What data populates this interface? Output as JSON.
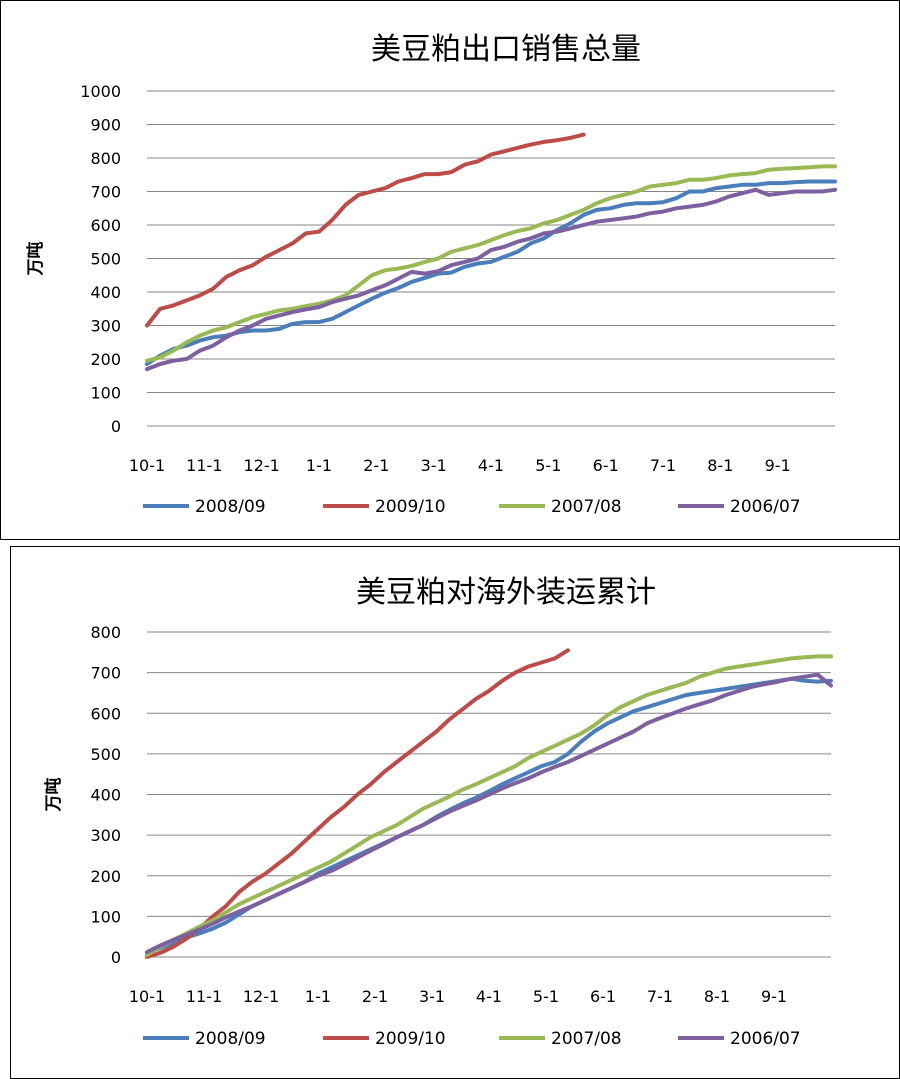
{
  "chart_data": [
    {
      "type": "line",
      "title": "美豆粕出口销售总量",
      "ylabel": "万吨",
      "xlabel": "",
      "ylim": [
        0,
        1000
      ],
      "yticks": [
        0,
        100,
        200,
        300,
        400,
        500,
        600,
        700,
        800,
        900,
        1000
      ],
      "x_tick_labels": [
        "10-1",
        "11-1",
        "12-1",
        "1-1",
        "2-1",
        "3-1",
        "4-1",
        "5-1",
        "6-1",
        "7-1",
        "8-1",
        "9-1"
      ],
      "points_per_series": 53,
      "legend_position": "bottom",
      "series": [
        {
          "name": "2008/09",
          "color": "#4a7ebb",
          "values": [
            185,
            210,
            230,
            240,
            255,
            265,
            270,
            280,
            285,
            285,
            290,
            305,
            310,
            310,
            320,
            340,
            360,
            380,
            398,
            412,
            430,
            442,
            455,
            458,
            475,
            485,
            490,
            505,
            520,
            545,
            560,
            585,
            605,
            630,
            645,
            650,
            660,
            665,
            665,
            668,
            680,
            700,
            700,
            710,
            715,
            720,
            720,
            725,
            725,
            728,
            730,
            730,
            730
          ]
        },
        {
          "name": "2009/10",
          "color": "#be4b48",
          "values": [
            300,
            350,
            360,
            375,
            390,
            410,
            445,
            465,
            480,
            505,
            525,
            545,
            575,
            580,
            615,
            660,
            690,
            700,
            710,
            730,
            740,
            752,
            752,
            758,
            780,
            790,
            810,
            820,
            830,
            840,
            848,
            853,
            860,
            870
          ]
        },
        {
          "name": "2007/08",
          "color": "#98b954",
          "values": [
            195,
            205,
            225,
            250,
            270,
            285,
            295,
            310,
            325,
            335,
            345,
            350,
            358,
            365,
            375,
            390,
            420,
            450,
            465,
            470,
            478,
            490,
            500,
            520,
            530,
            540,
            555,
            570,
            582,
            590,
            605,
            615,
            630,
            645,
            665,
            680,
            690,
            700,
            715,
            720,
            725,
            735,
            735,
            740,
            748,
            752,
            755,
            765,
            768,
            770,
            772,
            775,
            775
          ]
        },
        {
          "name": "2006/07",
          "color": "#7d60a0",
          "values": [
            170,
            185,
            195,
            200,
            225,
            240,
            265,
            285,
            300,
            320,
            330,
            340,
            348,
            355,
            370,
            380,
            390,
            405,
            420,
            440,
            460,
            455,
            462,
            480,
            490,
            500,
            525,
            535,
            550,
            560,
            575,
            580,
            590,
            600,
            610,
            615,
            620,
            625,
            635,
            640,
            650,
            655,
            660,
            670,
            685,
            695,
            705,
            690,
            695,
            700,
            700,
            700,
            705
          ]
        }
      ]
    },
    {
      "type": "line",
      "title": "美豆粕对海外装运累计",
      "ylabel": "万吨",
      "xlabel": "",
      "ylim": [
        0,
        800
      ],
      "yticks": [
        0,
        100,
        200,
        300,
        400,
        500,
        600,
        700,
        800
      ],
      "x_tick_labels": [
        "10-1",
        "11-1",
        "12-1",
        "1-1",
        "2-1",
        "3-1",
        "4-1",
        "5-1",
        "6-1",
        "7-1",
        "8-1",
        "9-1"
      ],
      "points_per_series": 53,
      "legend_position": "bottom",
      "series": [
        {
          "name": "2008/09",
          "color": "#4a7ebb",
          "values": [
            10,
            22,
            35,
            48,
            58,
            70,
            85,
            105,
            125,
            140,
            155,
            170,
            185,
            205,
            220,
            235,
            250,
            265,
            280,
            295,
            310,
            325,
            345,
            362,
            378,
            392,
            408,
            425,
            440,
            455,
            470,
            480,
            500,
            530,
            555,
            575,
            590,
            605,
            615,
            625,
            635,
            645,
            650,
            655,
            660,
            665,
            670,
            675,
            680,
            685,
            680,
            678,
            680
          ]
        },
        {
          "name": "2009/10",
          "color": "#be4b48",
          "values": [
            0,
            10,
            25,
            45,
            70,
            100,
            125,
            160,
            185,
            205,
            230,
            255,
            285,
            315,
            345,
            370,
            400,
            425,
            455,
            480,
            505,
            530,
            555,
            585,
            610,
            635,
            655,
            680,
            700,
            715,
            725,
            735,
            755
          ]
        },
        {
          "name": "2007/08",
          "color": "#98b954",
          "values": [
            5,
            25,
            42,
            58,
            75,
            90,
            110,
            130,
            145,
            160,
            175,
            190,
            205,
            220,
            235,
            255,
            275,
            295,
            310,
            325,
            345,
            365,
            380,
            395,
            412,
            425,
            440,
            455,
            470,
            490,
            505,
            520,
            535,
            550,
            570,
            595,
            615,
            630,
            645,
            655,
            665,
            675,
            690,
            700,
            710,
            715,
            720,
            725,
            730,
            735,
            738,
            740,
            740
          ]
        },
        {
          "name": "2006/07",
          "color": "#7d60a0",
          "values": [
            12,
            28,
            42,
            55,
            68,
            82,
            98,
            112,
            125,
            140,
            155,
            170,
            185,
            200,
            212,
            228,
            245,
            262,
            278,
            295,
            310,
            325,
            342,
            358,
            372,
            385,
            400,
            415,
            428,
            440,
            455,
            468,
            480,
            495,
            510,
            525,
            540,
            555,
            575,
            588,
            600,
            612,
            622,
            632,
            645,
            655,
            665,
            672,
            678,
            685,
            690,
            695,
            668
          ]
        }
      ]
    }
  ]
}
